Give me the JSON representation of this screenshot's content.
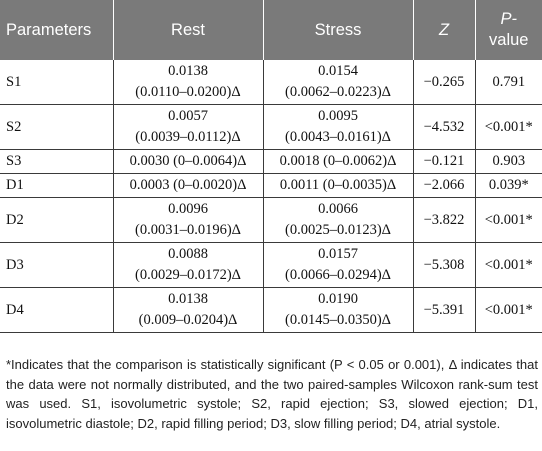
{
  "table": {
    "headers": {
      "parameters": "Parameters",
      "rest": "Rest",
      "stress": "Stress",
      "z": "Z",
      "p_value_line1": "P-",
      "p_value_line2": "value"
    },
    "rows": [
      {
        "parameter": "S1",
        "rest_line1": "0.0138",
        "rest_line2": "(0.0110–0.0200)Δ",
        "stress_line1": "0.0154",
        "stress_line2": "(0.0062–0.0223)Δ",
        "z": "−0.265",
        "p": "0.791"
      },
      {
        "parameter": "S2",
        "rest_line1": "0.0057",
        "rest_line2": "(0.0039–0.0112)Δ",
        "stress_line1": "0.0095",
        "stress_line2": "(0.0043–0.0161)Δ",
        "z": "−4.532",
        "p": "<0.001*"
      },
      {
        "parameter": "S3",
        "rest": "0.0030 (0–0.0064)Δ",
        "stress": "0.0018 (0–0.0062)Δ",
        "z": "−0.121",
        "p": "0.903"
      },
      {
        "parameter": "D1",
        "rest": "0.0003 (0–0.0020)Δ",
        "stress": "0.0011 (0–0.0035)Δ",
        "z": "−2.066",
        "p": "0.039*"
      },
      {
        "parameter": "D2",
        "rest_line1": "0.0096",
        "rest_line2": "(0.0031–0.0196)Δ",
        "stress_line1": "0.0066",
        "stress_line2": "(0.0025–0.0123)Δ",
        "z": "−3.822",
        "p": "<0.001*"
      },
      {
        "parameter": "D3",
        "rest_line1": "0.0088",
        "rest_line2": "(0.0029–0.0172)Δ",
        "stress_line1": "0.0157",
        "stress_line2": "(0.0066–0.0294)Δ",
        "z": "−5.308",
        "p": "<0.001*"
      },
      {
        "parameter": "D4",
        "rest_line1": "0.0138",
        "rest_line2": "(0.009–0.0204)Δ",
        "stress_line1": "0.0190",
        "stress_line2": "(0.0145–0.0350)Δ",
        "z": "−5.391",
        "p": "<0.001*"
      }
    ]
  },
  "footnote": "*Indicates that the comparison is statistically significant (P < 0.05 or 0.001), Δ indicates that the data were not normally distributed, and the two paired-samples Wilcoxon rank-sum test was used. S1, isovolumetric systole; S2, rapid ejection; S3, slowed ejection; D1, isovolumetric diastole; D2, rapid filling period; D3, slow filling period; D4, atrial systole.",
  "colors": {
    "header_bg": "#7a7a7a",
    "header_text": "#ffffff",
    "grid": "#3a3a3a"
  }
}
